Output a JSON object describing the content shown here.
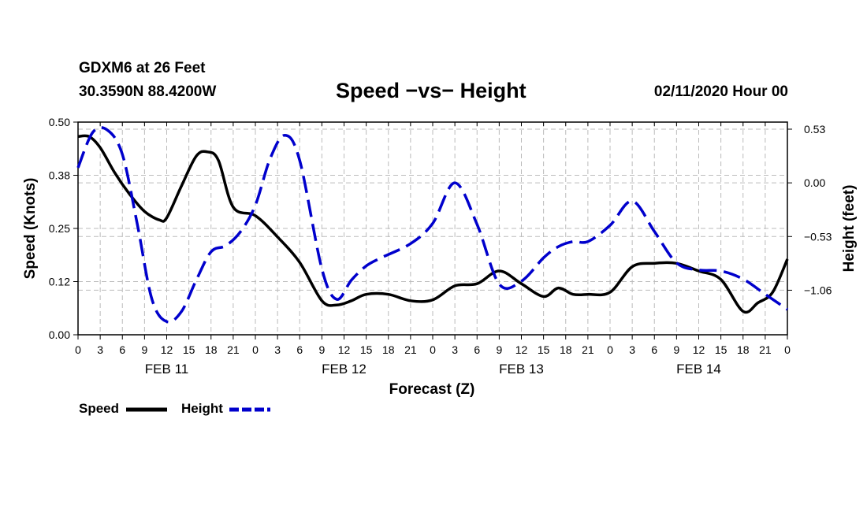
{
  "header": {
    "station": "GDXM6 at 26 Feet",
    "coords": "30.3590N 88.4200W",
    "title": "Speed −vs− Height",
    "datetime": "02/11/2020 Hour 00"
  },
  "legend": {
    "speed_label": "Speed",
    "height_label": "Height"
  },
  "colors": {
    "speed": "#000000",
    "height": "#0000cc",
    "grid": "#bbbbbb"
  },
  "chart_data": {
    "type": "line",
    "title": "Speed −vs− Height",
    "xlabel": "Forecast (Z)",
    "ylabel_left": "Speed (Knots)",
    "ylabel_right": "Height (feet)",
    "x_hours_range": [
      0,
      96
    ],
    "hour_tick_labels": [
      "0",
      "3",
      "6",
      "9",
      "12",
      "15",
      "18",
      "21",
      "0",
      "3",
      "6",
      "9",
      "12",
      "15",
      "18",
      "21",
      "0",
      "3",
      "6",
      "9",
      "12",
      "15",
      "18",
      "21",
      "0",
      "3",
      "6",
      "9",
      "12",
      "15",
      "18",
      "21",
      "0"
    ],
    "day_labels": [
      {
        "label": "FEB 11",
        "hour": 12
      },
      {
        "label": "FEB 12",
        "hour": 36
      },
      {
        "label": "FEB 13",
        "hour": 60
      },
      {
        "label": "FEB 14",
        "hour": 84
      }
    ],
    "left_axis": {
      "range": [
        0,
        0.5
      ],
      "ticks": [
        0,
        0.125,
        0.25,
        0.375,
        0.5
      ],
      "tick_labels": [
        "0.00",
        "0.12",
        "0.25",
        "0.38",
        "0.50"
      ]
    },
    "right_axis": {
      "range": [
        -1.5,
        0.6
      ],
      "ticks": [
        0.53,
        0,
        -0.53,
        -1.06
      ],
      "tick_labels": [
        "0.53",
        "0.00",
        "−0.53",
        "−1.06"
      ]
    },
    "grid": true,
    "legend_position": "bottom-left",
    "series": [
      {
        "name": "Speed",
        "axis": "left",
        "style": "solid",
        "hours": [
          0,
          1.5,
          3,
          5,
          7,
          9,
          11,
          12,
          14,
          16,
          17.5,
          19,
          21,
          24,
          27,
          30,
          33,
          35,
          37,
          39,
          42,
          45,
          48,
          51,
          54,
          57,
          60,
          63,
          65,
          67,
          69,
          72,
          75,
          78,
          81,
          84,
          87,
          90,
          92,
          94,
          96
        ],
        "values": [
          0.466,
          0.466,
          0.44,
          0.38,
          0.33,
          0.29,
          0.27,
          0.275,
          0.35,
          0.42,
          0.43,
          0.41,
          0.3,
          0.28,
          0.23,
          0.17,
          0.08,
          0.07,
          0.08,
          0.095,
          0.095,
          0.08,
          0.082,
          0.115,
          0.12,
          0.15,
          0.12,
          0.09,
          0.11,
          0.095,
          0.095,
          0.1,
          0.16,
          0.168,
          0.168,
          0.15,
          0.13,
          0.055,
          0.075,
          0.1,
          0.178
        ]
      },
      {
        "name": "Height",
        "axis": "right",
        "style": "dashed",
        "hours": [
          0,
          2,
          4,
          6,
          8,
          10,
          12,
          14,
          16,
          18,
          20,
          22,
          24,
          26,
          28,
          30,
          33,
          35,
          37,
          39,
          41,
          45,
          48,
          51,
          54,
          57,
          60,
          63,
          65,
          67,
          69,
          72,
          75,
          78,
          81,
          84,
          87,
          90,
          93,
          96
        ],
        "values": [
          0.15,
          0.5,
          0.52,
          0.28,
          -0.4,
          -1.15,
          -1.37,
          -1.27,
          -0.96,
          -0.68,
          -0.62,
          -0.48,
          -0.22,
          0.24,
          0.47,
          0.22,
          -0.85,
          -1.15,
          -0.96,
          -0.82,
          -0.74,
          -0.6,
          -0.4,
          0.0,
          -0.41,
          -1.0,
          -0.97,
          -0.74,
          -0.63,
          -0.58,
          -0.58,
          -0.42,
          -0.18,
          -0.48,
          -0.79,
          -0.86,
          -0.87,
          -0.95,
          -1.1,
          -1.25
        ]
      }
    ]
  }
}
